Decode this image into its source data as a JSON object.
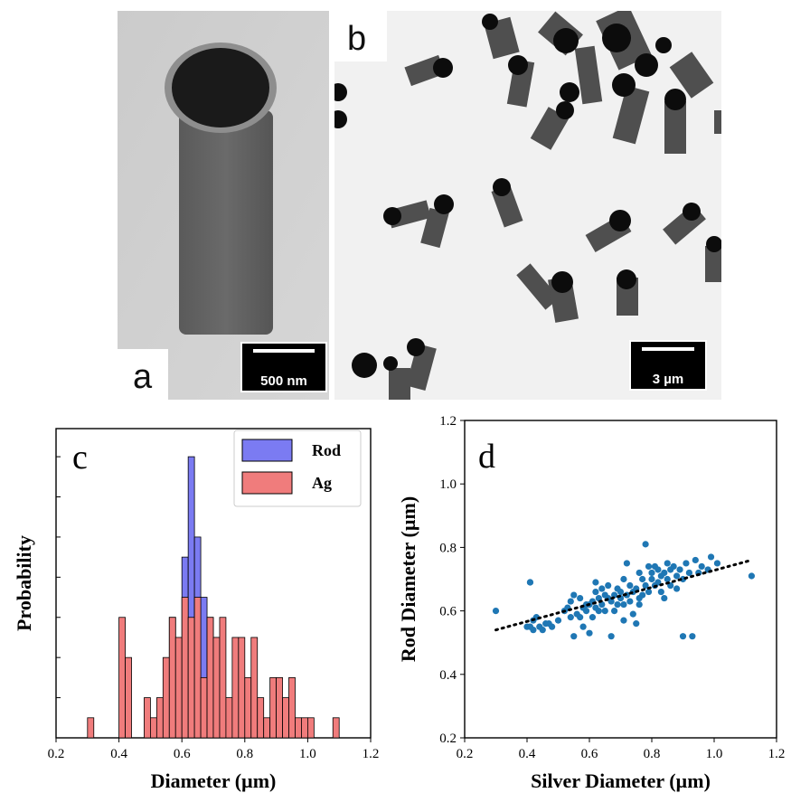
{
  "panels": {
    "a": {
      "letter": "a",
      "scale_label": "500 nm"
    },
    "b": {
      "letter": "b",
      "scale_label": "3 µm"
    },
    "c": {
      "letter": "c"
    },
    "d": {
      "letter": "d"
    }
  },
  "chart_data": [
    {
      "type": "bar",
      "panel": "c",
      "xlabel": "Diameter (µm)",
      "ylabel": "Probability",
      "xlim": [
        0.2,
        1.2
      ],
      "x_ticks": [
        "0.2",
        "0.4",
        "0.6",
        "0.8",
        "1.0",
        "1.2"
      ],
      "legend": "top-right",
      "bin_width": 0.02,
      "x": [
        0.3,
        0.32,
        0.34,
        0.36,
        0.38,
        0.4,
        0.42,
        0.44,
        0.46,
        0.48,
        0.5,
        0.52,
        0.54,
        0.56,
        0.58,
        0.6,
        0.62,
        0.64,
        0.66,
        0.68,
        0.7,
        0.72,
        0.74,
        0.76,
        0.78,
        0.8,
        0.82,
        0.84,
        0.86,
        0.88,
        0.9,
        0.92,
        0.94,
        0.96,
        0.98,
        1.0,
        1.02,
        1.04,
        1.06,
        1.08,
        1.1
      ],
      "series": [
        {
          "name": "Rod",
          "color": "#7b7bf2",
          "values": [
            0,
            0,
            0,
            0,
            0,
            0,
            0,
            0,
            0,
            0,
            0,
            1,
            2,
            6,
            4,
            9,
            14,
            10,
            7,
            6,
            5,
            2,
            0,
            0,
            0,
            0,
            0,
            0,
            0,
            1,
            0,
            0,
            0,
            0,
            0,
            0,
            0,
            0,
            0,
            0,
            0
          ]
        },
        {
          "name": "Ag",
          "color": "#f07c7c",
          "values": [
            1,
            0,
            0,
            0,
            0,
            6,
            4,
            0,
            0,
            2,
            1,
            2,
            4,
            6,
            5,
            7,
            6,
            7,
            3,
            6,
            5,
            6,
            2,
            5,
            5,
            3,
            5,
            2,
            1,
            3,
            3,
            2,
            3,
            1,
            1,
            1,
            0,
            0,
            0,
            1,
            0
          ]
        }
      ]
    },
    {
      "type": "scatter",
      "panel": "d",
      "xlabel": "Silver Diameter (µm)",
      "ylabel": "Rod Diameter (µm)",
      "xlim": [
        0.2,
        1.2
      ],
      "ylim": [
        0.2,
        1.2
      ],
      "x_ticks": [
        "0.2",
        "0.4",
        "0.6",
        "0.8",
        "1.0",
        "1.2"
      ],
      "y_ticks": [
        "0.2",
        "0.4",
        "0.6",
        "0.8",
        "1.0",
        "1.2"
      ],
      "point_color": "#1f77b4",
      "fit_line": {
        "x": [
          0.3,
          1.12
        ],
        "y": [
          0.54,
          0.76
        ]
      },
      "points": [
        [
          0.3,
          0.6
        ],
        [
          0.4,
          0.55
        ],
        [
          0.41,
          0.55
        ],
        [
          0.41,
          0.69
        ],
        [
          0.41,
          0.69
        ],
        [
          0.42,
          0.54
        ],
        [
          0.42,
          0.57
        ],
        [
          0.43,
          0.58
        ],
        [
          0.44,
          0.55
        ],
        [
          0.45,
          0.54
        ],
        [
          0.46,
          0.56
        ],
        [
          0.47,
          0.56
        ],
        [
          0.48,
          0.55
        ],
        [
          0.5,
          0.57
        ],
        [
          0.52,
          0.6
        ],
        [
          0.53,
          0.61
        ],
        [
          0.54,
          0.63
        ],
        [
          0.54,
          0.58
        ],
        [
          0.55,
          0.52
        ],
        [
          0.55,
          0.65
        ],
        [
          0.56,
          0.59
        ],
        [
          0.57,
          0.58
        ],
        [
          0.58,
          0.61
        ],
        [
          0.58,
          0.55
        ],
        [
          0.59,
          0.62
        ],
        [
          0.59,
          0.6
        ],
        [
          0.6,
          0.62
        ],
        [
          0.6,
          0.53
        ],
        [
          0.61,
          0.63
        ],
        [
          0.61,
          0.58
        ],
        [
          0.62,
          0.66
        ],
        [
          0.62,
          0.61
        ],
        [
          0.63,
          0.64
        ],
        [
          0.63,
          0.6
        ],
        [
          0.64,
          0.67
        ],
        [
          0.64,
          0.62
        ],
        [
          0.65,
          0.65
        ],
        [
          0.65,
          0.6
        ],
        [
          0.66,
          0.68
        ],
        [
          0.66,
          0.64
        ],
        [
          0.67,
          0.63
        ],
        [
          0.67,
          0.52
        ],
        [
          0.68,
          0.65
        ],
        [
          0.68,
          0.6
        ],
        [
          0.69,
          0.62
        ],
        [
          0.69,
          0.67
        ],
        [
          0.7,
          0.64
        ],
        [
          0.7,
          0.66
        ],
        [
          0.71,
          0.7
        ],
        [
          0.71,
          0.62
        ],
        [
          0.72,
          0.65
        ],
        [
          0.72,
          0.75
        ],
        [
          0.73,
          0.68
        ],
        [
          0.73,
          0.63
        ],
        [
          0.74,
          0.66
        ],
        [
          0.74,
          0.59
        ],
        [
          0.75,
          0.67
        ],
        [
          0.75,
          0.56
        ],
        [
          0.76,
          0.72
        ],
        [
          0.76,
          0.64
        ],
        [
          0.77,
          0.7
        ],
        [
          0.77,
          0.65
        ],
        [
          0.78,
          0.81
        ],
        [
          0.78,
          0.68
        ],
        [
          0.79,
          0.74
        ],
        [
          0.79,
          0.66
        ],
        [
          0.8,
          0.7
        ],
        [
          0.8,
          0.72
        ],
        [
          0.81,
          0.74
        ],
        [
          0.81,
          0.68
        ],
        [
          0.82,
          0.69
        ],
        [
          0.82,
          0.73
        ],
        [
          0.83,
          0.71
        ],
        [
          0.83,
          0.66
        ],
        [
          0.84,
          0.72
        ],
        [
          0.84,
          0.64
        ],
        [
          0.85,
          0.7
        ],
        [
          0.85,
          0.75
        ],
        [
          0.86,
          0.73
        ],
        [
          0.86,
          0.68
        ],
        [
          0.87,
          0.74
        ],
        [
          0.88,
          0.71
        ],
        [
          0.88,
          0.67
        ],
        [
          0.89,
          0.73
        ],
        [
          0.9,
          0.7
        ],
        [
          0.9,
          0.52
        ],
        [
          0.91,
          0.75
        ],
        [
          0.92,
          0.72
        ],
        [
          0.93,
          0.52
        ],
        [
          0.94,
          0.76
        ],
        [
          0.95,
          0.72
        ],
        [
          0.96,
          0.74
        ],
        [
          0.98,
          0.73
        ],
        [
          0.99,
          0.77
        ],
        [
          1.01,
          0.75
        ],
        [
          1.12,
          0.71
        ],
        [
          0.57,
          0.64
        ],
        [
          0.62,
          0.69
        ],
        [
          0.71,
          0.57
        ],
        [
          0.76,
          0.62
        ]
      ]
    }
  ]
}
